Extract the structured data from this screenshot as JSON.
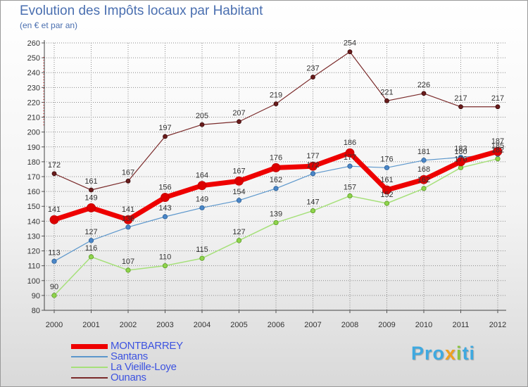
{
  "brand": {
    "p1": "Pro",
    "p2": "x",
    "p3": "i",
    "p4": "ti"
  },
  "chart_data": {
    "type": "line",
    "title": "Evolution des Impôts locaux par Habitant",
    "subtitle": "(en € et par an)",
    "xlabel": "",
    "ylabel": "",
    "ylim": [
      80,
      260
    ],
    "ytick_step": 10,
    "categories": [
      "2000",
      "2001",
      "2002",
      "2003",
      "2004",
      "2005",
      "2006",
      "2007",
      "2008",
      "2009",
      "2010",
      "2011",
      "2012"
    ],
    "legend_position": "bottom-left",
    "series": [
      {
        "name": "MONTBARREY",
        "color": "#ee0000",
        "values": [
          141,
          149,
          141,
          156,
          164,
          167,
          176,
          177,
          186,
          161,
          168,
          180,
          187
        ]
      },
      {
        "name": "Santans",
        "color": "#5c97cc",
        "values": [
          113,
          127,
          136,
          143,
          149,
          154,
          162,
          172,
          177,
          176,
          181,
          183,
          185
        ]
      },
      {
        "name": "La Vieille-Loye",
        "color": "#a6e07a",
        "values": [
          90,
          116,
          107,
          110,
          115,
          127,
          139,
          147,
          157,
          152,
          162,
          176,
          182
        ]
      },
      {
        "name": "Ounans",
        "color": "#7a2a2a",
        "values": [
          172,
          161,
          167,
          197,
          205,
          207,
          219,
          237,
          254,
          221,
          226,
          217,
          217
        ]
      }
    ]
  }
}
